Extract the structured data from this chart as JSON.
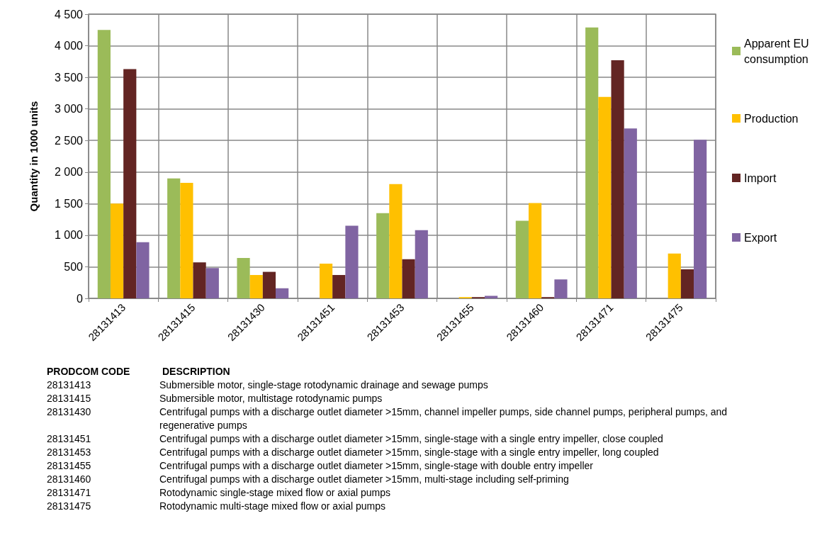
{
  "chart_data": {
    "type": "bar",
    "ylabel": "Quantity in 1000 units",
    "categories": [
      "28131413",
      "28131415",
      "28131430",
      "28131451",
      "28131453",
      "28131455",
      "28131460",
      "28131471",
      "28131475"
    ],
    "series": [
      {
        "name": "Apparent EU consumption",
        "color": "#9bbb59",
        "values": [
          4250,
          1900,
          640,
          null,
          1350,
          null,
          1230,
          4290,
          null
        ]
      },
      {
        "name": "Production",
        "color": "#ffc000",
        "values": [
          1500,
          1830,
          370,
          550,
          1810,
          20,
          1510,
          3190,
          710
        ]
      },
      {
        "name": "Import",
        "color": "#632523",
        "values": [
          3630,
          570,
          420,
          370,
          620,
          20,
          20,
          3770,
          460
        ]
      },
      {
        "name": "Export",
        "color": "#8064a2",
        "values": [
          890,
          480,
          160,
          1150,
          1080,
          40,
          300,
          2690,
          2510
        ]
      }
    ],
    "ylim": [
      0,
      4500
    ],
    "yticks": [
      0,
      500,
      {
        "value": 1000,
        "label": "1 000"
      },
      {
        "value": 1500,
        "label": "1 500"
      },
      {
        "value": 2000,
        "label": "2 000"
      },
      {
        "value": 2500,
        "label": "2 500"
      },
      {
        "value": 3000,
        "label": "3 000"
      },
      {
        "value": 3500,
        "label": "3 500"
      },
      {
        "value": 4000,
        "label": "4 000"
      },
      {
        "value": 4500,
        "label": "4 500"
      }
    ],
    "grid": true,
    "legend": "right",
    "annotations": [
      "PRODCOM CODE",
      "DESCRIPTION",
      "28131413",
      "Submersible motor, single-stage rotodynamic drainage and sewage pumps",
      "28131415",
      "Submersible motor, multistage rotodynamic pumps",
      "28131430",
      "Centrifugal pumps with a discharge outlet diameter >15mm, channel impeller pumps, side channel pumps, peripheral pumps, and regenerative pumps",
      "28131451",
      "Centrifugal pumps with a discharge outlet diameter >15mm, single-stage with a single entry impeller, close coupled",
      "28131453",
      "Centrifugal pumps with a discharge outlet diameter >15mm, single-stage with a single entry impeller, long coupled",
      "28131455",
      "Centrifugal pumps with a discharge outlet diameter >15mm, single-stage with double entry impeller",
      "28131460",
      "Centrifugal pumps with a discharge outlet diameter >15mm, multi-stage including self-priming",
      "28131471",
      "Rotodynamic single-stage mixed flow or axial pumps",
      "28131475",
      "Rotodynamic multi-stage mixed flow or axial pumps"
    ]
  }
}
